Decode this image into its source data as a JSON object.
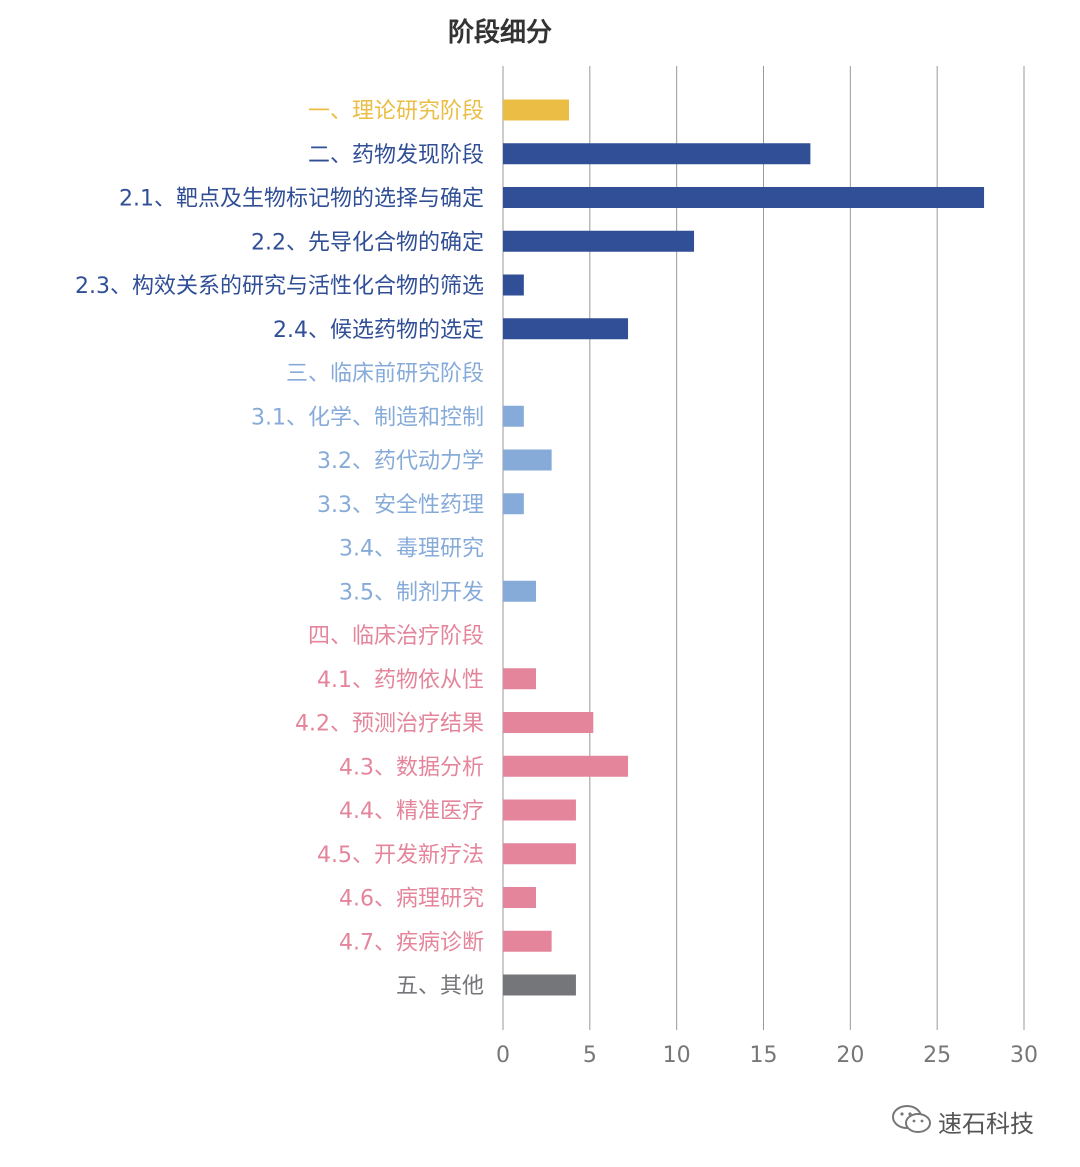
{
  "chart_data": {
    "type": "bar",
    "orientation": "horizontal",
    "title": "阶段细分",
    "xlabel": "",
    "ylabel": "",
    "xlim": [
      0,
      30
    ],
    "xticks": [
      0,
      5,
      10,
      15,
      20,
      25,
      30
    ],
    "grid": "vertical",
    "legend": "none",
    "categories": [
      {
        "label": "一、理论研究阶段",
        "value": 3.8,
        "group": "theory"
      },
      {
        "label": "二、药物发现阶段",
        "value": 17.7,
        "group": "discovery"
      },
      {
        "label": "2.1、靶点及生物标记物的选择与确定",
        "value": 27.7,
        "group": "discovery"
      },
      {
        "label": "2.2、先导化合物的确定",
        "value": 11.0,
        "group": "discovery"
      },
      {
        "label": "2.3、构效关系的研究与活性化合物的筛选",
        "value": 1.2,
        "group": "discovery"
      },
      {
        "label": "2.4、候选药物的选定",
        "value": 7.2,
        "group": "discovery"
      },
      {
        "label": "三、临床前研究阶段",
        "value": 0,
        "group": "preclinical"
      },
      {
        "label": "3.1、化学、制造和控制",
        "value": 1.2,
        "group": "preclinical"
      },
      {
        "label": "3.2、药代动力学",
        "value": 2.8,
        "group": "preclinical"
      },
      {
        "label": "3.3、安全性药理",
        "value": 1.2,
        "group": "preclinical"
      },
      {
        "label": "3.4、毒理研究",
        "value": 0,
        "group": "preclinical"
      },
      {
        "label": "3.5、制剂开发",
        "value": 1.9,
        "group": "preclinical"
      },
      {
        "label": "四、临床治疗阶段",
        "value": 0,
        "group": "clinical"
      },
      {
        "label": "4.1、药物依从性",
        "value": 1.9,
        "group": "clinical"
      },
      {
        "label": "4.2、预测治疗结果",
        "value": 5.2,
        "group": "clinical"
      },
      {
        "label": "4.3、数据分析",
        "value": 7.2,
        "group": "clinical"
      },
      {
        "label": "4.4、精准医疗",
        "value": 4.2,
        "group": "clinical"
      },
      {
        "label": "4.5、开发新疗法",
        "value": 4.2,
        "group": "clinical"
      },
      {
        "label": "4.6、病理研究",
        "value": 1.9,
        "group": "clinical"
      },
      {
        "label": "4.7、疾病诊断",
        "value": 2.8,
        "group": "clinical"
      },
      {
        "label": "五、其他",
        "value": 4.2,
        "group": "other"
      }
    ],
    "colors": {
      "theory": "#ebbd45",
      "discovery": "#314f96",
      "preclinical": "#86abd9",
      "clinical": "#e4859b",
      "other": "#75767a",
      "grid": "#999999",
      "tick": "#777777"
    }
  },
  "watermark": {
    "text": "速石科技",
    "icon": "wechat-icon"
  }
}
